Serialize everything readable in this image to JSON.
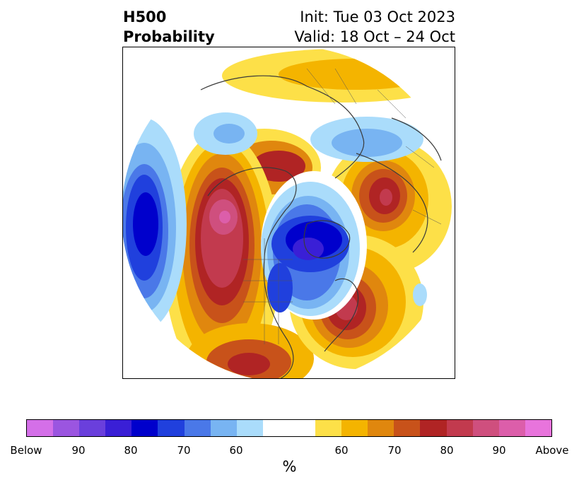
{
  "title": {
    "left_line1": "H500",
    "left_line2": "Probability",
    "right_line1": "Init: Tue 03 Oct 2023",
    "right_line2": "Valid: 18 Oct – 24 Oct"
  },
  "colorbar": {
    "unit": "%",
    "colors": [
      "#d46fe8",
      "#9b55e0",
      "#6a3fdc",
      "#3a1fd6",
      "#0000cc",
      "#2040dd",
      "#4a78e8",
      "#78b4f2",
      "#aadcfb",
      "#ffffff",
      "#ffffff",
      "#fde048",
      "#f4b400",
      "#e0870e",
      "#c8521a",
      "#b02424",
      "#c23a4e",
      "#cf4f7e",
      "#dc5eaa",
      "#e874dc"
    ],
    "tick_labels": [
      "Below",
      "90",
      "80",
      "70",
      "60",
      "60",
      "70",
      "80",
      "90",
      "Above"
    ]
  },
  "map": {
    "projection": "north-polar-stereographic",
    "features": [
      "coastlines",
      "country-borders",
      "state-borders"
    ]
  }
}
